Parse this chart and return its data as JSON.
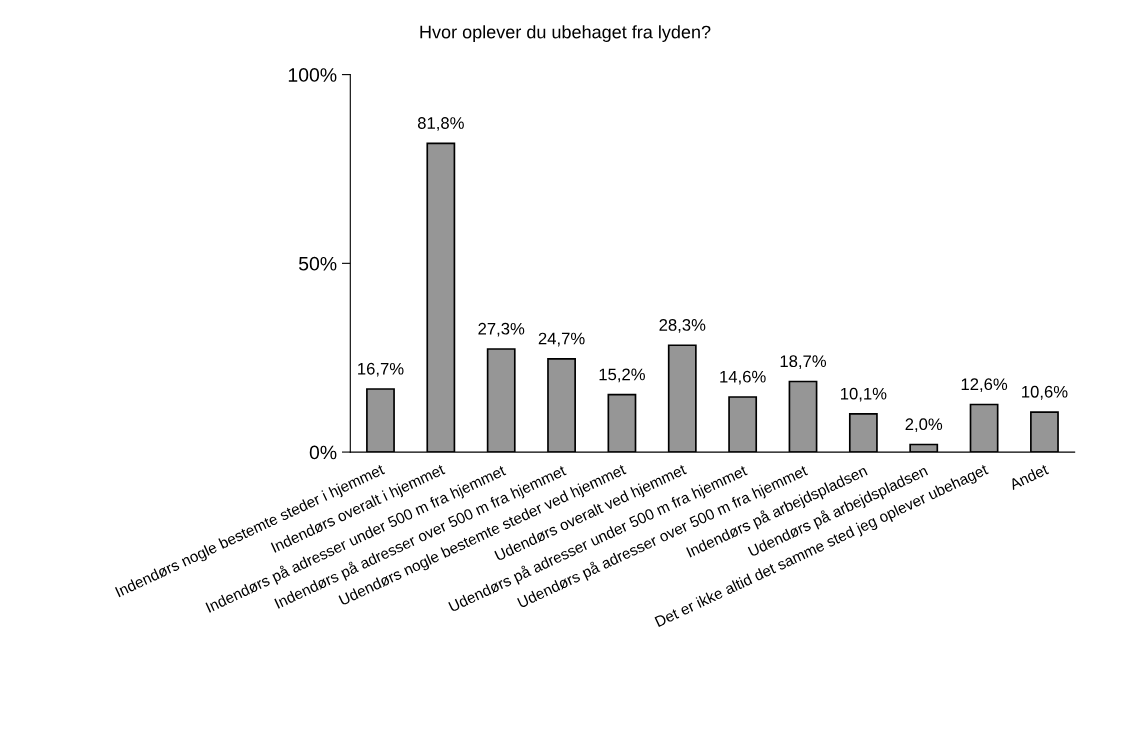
{
  "chart_data": {
    "type": "bar",
    "title": "Hvor oplever du ubehaget fra lyden?",
    "categories": [
      "Indendørs nogle bestemte steder i hjemmet",
      "Indendørs overalt i hjemmet",
      "Indendørs på adresser under 500 m fra hjemmet",
      "Indendørs på adresser over 500 m fra hjemmet",
      "Udendørs nogle bestemte steder ved hjemmet",
      "Udendørs overalt ved hjemmet",
      "Udendørs på adresser under 500 m fra hjemmet",
      "Udendørs på adresser over 500 m fra hjemmet",
      "Indendørs på arbejdspladsen",
      "Udendørs på arbejdspladsen",
      "Det er ikke altid det samme sted jeg oplever ubehaget",
      "Andet"
    ],
    "values": [
      16.7,
      81.8,
      27.3,
      24.7,
      15.2,
      28.3,
      14.6,
      18.7,
      10.1,
      2.0,
      12.6,
      10.6
    ],
    "value_labels": [
      "16,7%",
      "81,8%",
      "27,3%",
      "24,7%",
      "15,2%",
      "28,3%",
      "14,6%",
      "18,7%",
      "10,1%",
      "2,0%",
      "12,6%",
      "10,6%"
    ],
    "color": "#969696",
    "ylim": [
      0,
      100
    ],
    "yticks": [
      {
        "value": 0,
        "label": "0%"
      },
      {
        "value": 50,
        "label": "50%"
      },
      {
        "value": 100,
        "label": "100%"
      }
    ],
    "grid": false
  }
}
